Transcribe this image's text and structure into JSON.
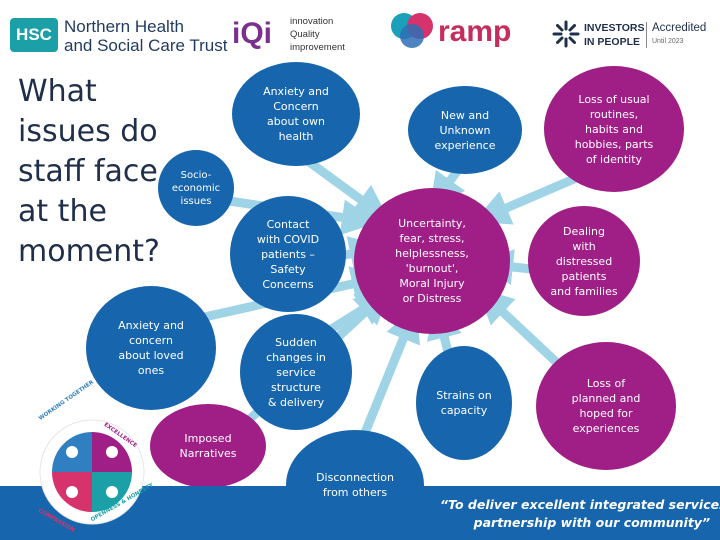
{
  "header": {
    "hsc_badge": "HSC",
    "hsc_name_line1": "Northern Health",
    "hsc_name_line2": "and Social Care Trust",
    "iqi_mark": "iQi",
    "iqi_line1": "innovation",
    "iqi_line2": "Quality",
    "iqi_line3": "improvement",
    "ramp_word": "ramp",
    "iip_line1": "INVESTORS",
    "iip_line2": "IN PEOPLE",
    "iip_status": "Accredited",
    "iip_date": "Until 2023"
  },
  "title_lines": [
    "What",
    "issues do",
    "staff face",
    "at the",
    "moment?"
  ],
  "center": "Uncertainty,\nfear, stress,\nhelplessness,\n'burnout',\nMoral Injury\nor Distress",
  "bubbles": {
    "socio_economic": "Socio-\neconomic\nissues",
    "anxiety_own_health": "Anxiety and\nConcern\nabout own\nhealth",
    "new_unknown": "New and\nUnknown\nexperience",
    "loss_routines": "Loss of usual\nroutines,\nhabits and\nhobbies, parts\nof identity",
    "contact_covid": "Contact\nwith COVID\npatients –\nSafety\nConcerns",
    "dealing_distressed": "Dealing\nwith\ndistressed\npatients\nand families",
    "anxiety_loved": "Anxiety and\nconcern\nabout loved\nones",
    "sudden_changes": "Sudden\nchanges in\nservice\nstructure\n& delivery",
    "strains_capacity": "Strains on\ncapacity",
    "loss_planned": "Loss of\nplanned and\nhoped for\nexperiences",
    "imposed_narratives": "Imposed\nNarratives",
    "disconnection": "Disconnection\nfrom others"
  },
  "values_wheel": {
    "working_together": "WORKING TOGETHER",
    "excellence": "EXCELLENCE",
    "compassion": "COMPASSION",
    "openness_honesty": "OPENNESS & HONESTY"
  },
  "footer": {
    "line1": "“To deliver excellent integrated services in",
    "line2": "partnership with our community”"
  },
  "colors": {
    "blue": "#1766ad",
    "purple": "#9f1f86",
    "arrow": "#9fd3e6",
    "hsc_green": "#0a9a8a"
  }
}
